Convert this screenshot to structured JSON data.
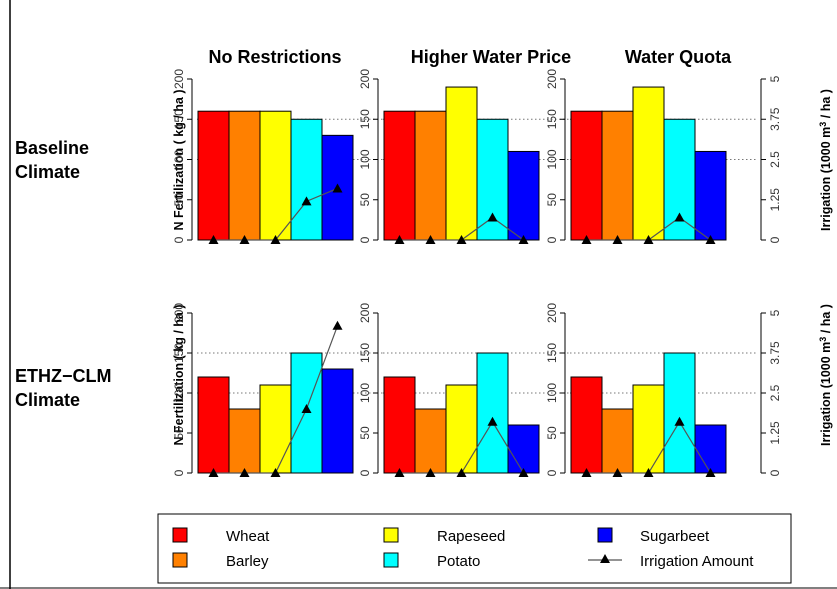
{
  "columns": [
    "No Restrictions",
    "Higher Water Price",
    "Water Quota"
  ],
  "rows": [
    {
      "line1": "Baseline",
      "line2": "Climate"
    },
    {
      "line1": "ETHZ−CLM",
      "line2": "Climate"
    }
  ],
  "y_left_label": "N Fertilization ( kg / ha )",
  "y_right_label": {
    "pre": "Irrigation (1000 m",
    "sup": "3",
    "post": " / ha )"
  },
  "left_ticks": [
    "0",
    "50",
    "100",
    "150",
    "200"
  ],
  "right_ticks": [
    "0",
    "1.25",
    "2.5",
    "3.75",
    "5"
  ],
  "colors": {
    "Wheat": "#ff0000",
    "Barley": "#ff8000",
    "Rapeseed": "#ffff00",
    "Potato": "#00ffff",
    "Sugarbeet": "#0000ff",
    "line": "#555555"
  },
  "legend": {
    "wheat": "Wheat",
    "barley": "Barley",
    "rapeseed": "Rapeseed",
    "potato": "Potato",
    "sugarbeet": "Sugarbeet",
    "irrigation": "Irrigation Amount"
  },
  "chart_data": [
    {
      "type": "bar",
      "row": "Baseline Climate",
      "column": "No Restrictions",
      "categories": [
        "Wheat",
        "Barley",
        "Rapeseed",
        "Potato",
        "Sugarbeet"
      ],
      "values": [
        160,
        160,
        160,
        150,
        130
      ],
      "ylim": [
        0,
        200
      ],
      "irrigation": [
        0,
        0,
        0,
        1.2,
        1.6
      ],
      "irrigation_ylim": [
        0,
        5
      ]
    },
    {
      "type": "bar",
      "row": "Baseline Climate",
      "column": "Higher Water Price",
      "categories": [
        "Wheat",
        "Barley",
        "Rapeseed",
        "Potato",
        "Sugarbeet"
      ],
      "values": [
        160,
        160,
        190,
        150,
        110
      ],
      "ylim": [
        0,
        200
      ],
      "irrigation": [
        0,
        0,
        0,
        0.7,
        0
      ],
      "irrigation_ylim": [
        0,
        5
      ]
    },
    {
      "type": "bar",
      "row": "Baseline Climate",
      "column": "Water Quota",
      "categories": [
        "Wheat",
        "Barley",
        "Rapeseed",
        "Potato",
        "Sugarbeet"
      ],
      "values": [
        160,
        160,
        190,
        150,
        110
      ],
      "ylim": [
        0,
        200
      ],
      "irrigation": [
        0,
        0,
        0,
        0.7,
        0
      ],
      "irrigation_ylim": [
        0,
        5
      ]
    },
    {
      "type": "bar",
      "row": "ETHZ-CLM Climate",
      "column": "No Restrictions",
      "categories": [
        "Wheat",
        "Barley",
        "Rapeseed",
        "Potato",
        "Sugarbeet"
      ],
      "values": [
        120,
        80,
        110,
        150,
        130
      ],
      "ylim": [
        0,
        200
      ],
      "irrigation": [
        0,
        0,
        0,
        2.0,
        4.6
      ],
      "irrigation_ylim": [
        0,
        5
      ]
    },
    {
      "type": "bar",
      "row": "ETHZ-CLM Climate",
      "column": "Higher Water Price",
      "categories": [
        "Wheat",
        "Barley",
        "Rapeseed",
        "Potato",
        "Sugarbeet"
      ],
      "values": [
        120,
        80,
        110,
        150,
        60
      ],
      "ylim": [
        0,
        200
      ],
      "irrigation": [
        0,
        0,
        0,
        1.6,
        0
      ],
      "irrigation_ylim": [
        0,
        5
      ]
    },
    {
      "type": "bar",
      "row": "ETHZ-CLM Climate",
      "column": "Water Quota",
      "categories": [
        "Wheat",
        "Barley",
        "Rapeseed",
        "Potato",
        "Sugarbeet"
      ],
      "values": [
        120,
        80,
        110,
        150,
        60
      ],
      "ylim": [
        0,
        200
      ],
      "irrigation": [
        0,
        0,
        0,
        1.6,
        0
      ],
      "irrigation_ylim": [
        0,
        5
      ]
    }
  ]
}
